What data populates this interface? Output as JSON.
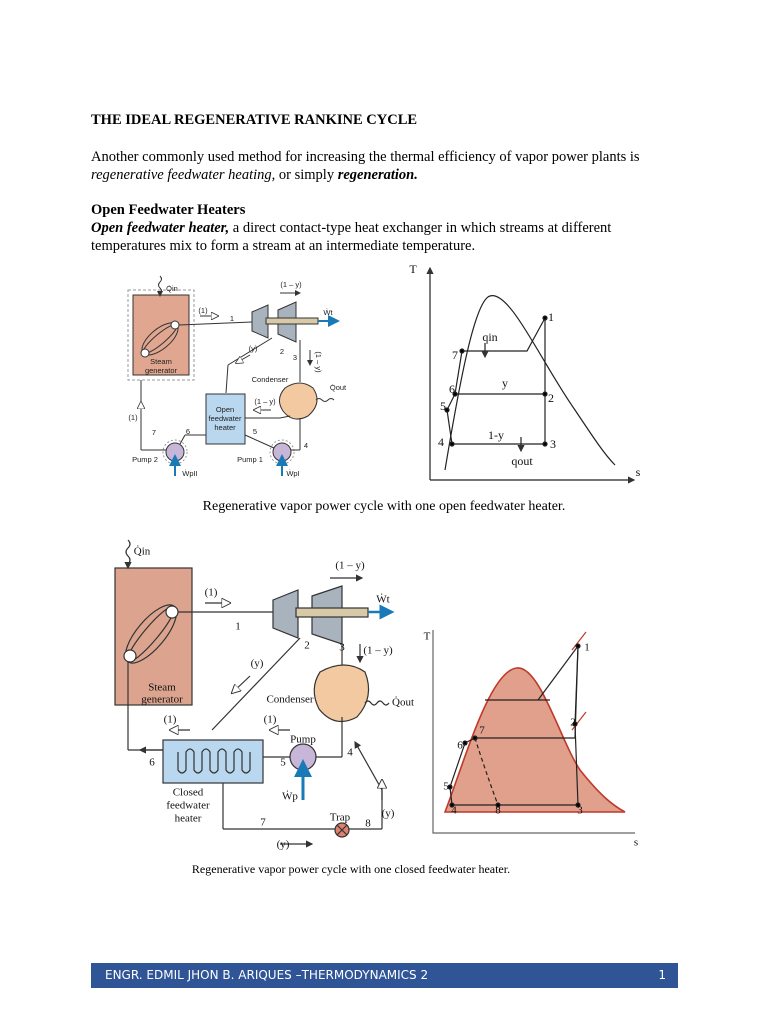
{
  "header": {
    "title": "THE IDEAL REGENERATIVE RANKINE CYCLE"
  },
  "intro": {
    "parts": [
      "Another commonly used method for increasing the thermal efficiency of vapor power plants is ",
      "regenerative feedwater heating,",
      " or simply ",
      "regeneration."
    ]
  },
  "section": {
    "heading": "Open Feedwater Heaters",
    "parts": [
      "Open feedwater heater,",
      " a direct contact-type heat exchanger in which streams at different temperatures mix to form a stream at an intermediate temperature."
    ]
  },
  "figure1": {
    "diagram_labels": [
      "Q̇in",
      "(1 – y)",
      "(1)",
      "1",
      "Ẇt",
      "(y)",
      "2",
      "3",
      "(1 – y)",
      "Steam",
      "generator",
      "Condenser",
      "Q̇out",
      "(1 – y)",
      "Open",
      "feedwater",
      "heater",
      "(1)",
      "7",
      "6",
      "5",
      "4",
      "Pump 2",
      "ẆpII",
      "Pump 1",
      "ẆpI"
    ],
    "ts_labels": [
      "T",
      "s",
      "1",
      "qin",
      "7",
      "6",
      "5",
      "4",
      "y",
      "2",
      "1-y",
      "3",
      "qout"
    ],
    "caption": "Regenerative vapor power cycle with one open feedwater heater."
  },
  "figure2": {
    "diagram_labels": [
      "Q̇in",
      "(1)",
      "1",
      "(1 – y)",
      "Ẇt",
      "2",
      "3",
      "(1 – y)",
      "(y)",
      "Steam",
      "generator",
      "Condenser",
      "Q̇out",
      "(1)",
      "(1)",
      "Pump",
      "4",
      "6",
      "5",
      "Ẇp",
      "Closed",
      "feedwater",
      "heater",
      "7",
      "Trap",
      "8",
      "(y)",
      "(y)"
    ],
    "ts_labels": [
      "T",
      "s",
      "1",
      "2",
      "7",
      "6",
      "5",
      "4",
      "8",
      "3"
    ],
    "caption": "Regenerative vapor power cycle with one closed feedwater heater."
  },
  "footer": {
    "text": "ENGR. EDMIL JHON B. ARIQUES –THERMODYNAMICS 2",
    "page": "1"
  }
}
